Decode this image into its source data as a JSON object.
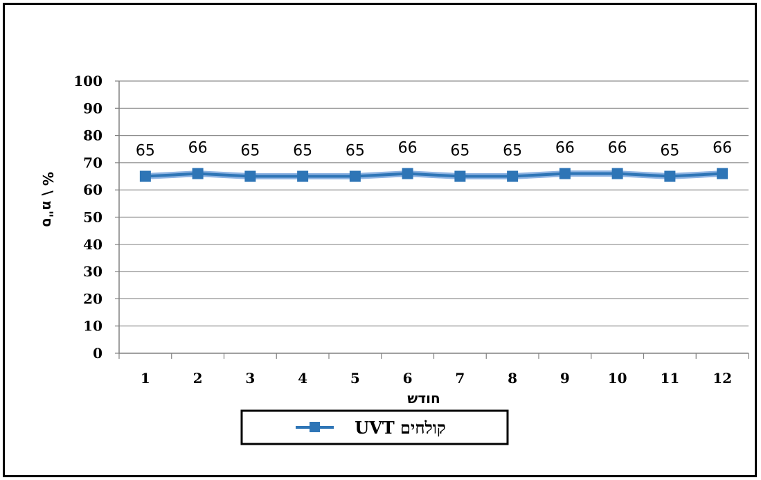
{
  "chart_data": {
    "type": "line",
    "x": [
      "1",
      "2",
      "3",
      "4",
      "5",
      "6",
      "7",
      "8",
      "9",
      "10",
      "11",
      "12"
    ],
    "series": [
      {
        "name": "קולחים UVT",
        "values": [
          65,
          66,
          65,
          65,
          65,
          66,
          65,
          65,
          66,
          66,
          65,
          66
        ],
        "color": "#2e75b6"
      }
    ],
    "data_labels": [
      "65",
      "66",
      "65",
      "65",
      "65",
      "66",
      "65",
      "65",
      "66",
      "66",
      "65",
      "66"
    ],
    "xlabel": "חודש",
    "ylabel": "% \\ ס\"מ",
    "ylim": [
      0,
      100
    ],
    "yticks": [
      0,
      10,
      20,
      30,
      40,
      50,
      60,
      70,
      80,
      90,
      100
    ],
    "grid": true,
    "legend": "bottom"
  }
}
